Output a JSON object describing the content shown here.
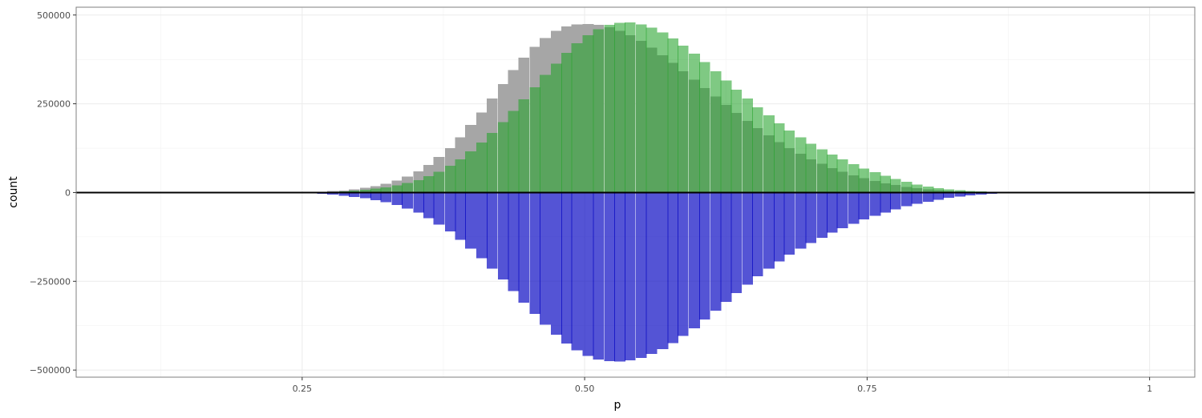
{
  "chart_data": {
    "type": "bar",
    "subtype": "mirrored-histogram",
    "xlabel": "p",
    "ylabel": "count",
    "xlim": [
      0.05,
      1.04
    ],
    "ylim": [
      -520000,
      522000
    ],
    "bin_width": 0.0094,
    "x_ticks": [
      0.25,
      0.5,
      0.75,
      1.0
    ],
    "x_tick_labels": [
      "0.25",
      "0.50",
      "0.75",
      "1"
    ],
    "y_ticks": [
      500000,
      250000,
      0,
      -250000,
      -500000
    ],
    "y_tick_labels": [
      "500000",
      "250000",
      "0",
      "−250000",
      "−500000"
    ],
    "grid": true,
    "zero_line": true,
    "x": [
      0.23,
      0.24,
      0.249,
      0.259,
      0.268,
      0.277,
      0.287,
      0.296,
      0.306,
      0.315,
      0.324,
      0.334,
      0.343,
      0.353,
      0.362,
      0.371,
      0.381,
      0.39,
      0.399,
      0.409,
      0.418,
      0.428,
      0.437,
      0.446,
      0.456,
      0.465,
      0.475,
      0.484,
      0.493,
      0.503,
      0.512,
      0.522,
      0.531,
      0.54,
      0.55,
      0.559,
      0.569,
      0.578,
      0.587,
      0.597,
      0.606,
      0.616,
      0.625,
      0.634,
      0.644,
      0.653,
      0.663,
      0.672,
      0.681,
      0.691,
      0.7,
      0.71,
      0.719,
      0.728,
      0.738,
      0.747,
      0.757,
      0.766,
      0.775,
      0.785,
      0.794,
      0.804,
      0.813,
      0.822,
      0.832,
      0.841,
      0.851,
      0.86,
      0.869,
      0.879,
      0.888,
      0.898,
      0.907,
      0.916,
      0.926,
      0.935,
      0.945,
      0.954,
      0.963,
      0.973
    ],
    "series": [
      {
        "color": "#a6a6a6",
        "opacity": 1.0,
        "values": [
          200,
          400,
          800,
          1500,
          2500,
          4000,
          6000,
          9000,
          13000,
          18000,
          25000,
          34000,
          45000,
          60000,
          78000,
          100000,
          125000,
          155000,
          190000,
          225000,
          265000,
          305000,
          345000,
          380000,
          410000,
          435000,
          455000,
          468000,
          474000,
          475000,
          472000,
          466000,
          456000,
          443000,
          427000,
          408000,
          387000,
          365000,
          342000,
          318000,
          294000,
          270000,
          247000,
          224000,
          202000,
          181000,
          161000,
          142000,
          125000,
          109000,
          94000,
          81000,
          69000,
          58000,
          48000,
          40000,
          33000,
          26000,
          21000,
          16000,
          12000,
          9000,
          6500,
          4500,
          3000,
          2000,
          1300,
          800,
          500,
          300,
          200,
          100,
          50,
          30,
          10,
          0,
          0,
          0,
          0,
          0
        ]
      },
      {
        "color": "#22a22a",
        "opacity": 0.58,
        "values": [
          100,
          200,
          500,
          900,
          1500,
          2500,
          3800,
          5500,
          8000,
          11000,
          15000,
          20000,
          27000,
          35000,
          46000,
          59000,
          75000,
          94000,
          116000,
          141000,
          168000,
          198000,
          230000,
          263000,
          297000,
          331000,
          363000,
          393000,
          420000,
          443000,
          460000,
          472000,
          478000,
          479000,
          474000,
          465000,
          451000,
          434000,
          414000,
          391000,
          367000,
          342000,
          316000,
          290000,
          265000,
          240000,
          217000,
          195000,
          175000,
          156000,
          138000,
          122000,
          107000,
          93000,
          80000,
          68000,
          57000,
          47000,
          38000,
          30000,
          23000,
          17000,
          12500,
          9000,
          6500,
          4500,
          3000,
          2000,
          1200,
          700,
          400,
          200,
          100,
          50,
          20,
          10,
          0,
          0,
          0,
          0
        ]
      },
      {
        "color": "#0000c0",
        "opacity": 0.67,
        "values": [
          -300,
          -700,
          -1500,
          -2500,
          -4000,
          -6000,
          -9000,
          -12000,
          -16000,
          -21000,
          -27000,
          -35000,
          -45000,
          -57000,
          -72000,
          -90000,
          -110000,
          -133000,
          -158000,
          -185000,
          -214000,
          -245000,
          -277000,
          -310000,
          -342000,
          -372000,
          -400000,
          -425000,
          -445000,
          -460000,
          -470000,
          -475000,
          -476000,
          -473000,
          -466000,
          -455000,
          -441000,
          -424000,
          -404000,
          -382000,
          -358000,
          -333000,
          -308000,
          -283000,
          -259000,
          -236000,
          -214000,
          -194000,
          -175000,
          -158000,
          -142000,
          -127000,
          -113000,
          -100000,
          -88000,
          -76000,
          -66000,
          -56000,
          -47000,
          -39000,
          -32000,
          -26000,
          -20000,
          -15000,
          -11000,
          -8000,
          -5500,
          -3500,
          -2200,
          -1300,
          -700,
          -400,
          -200,
          -100,
          -50,
          -20,
          0,
          0,
          0,
          0
        ]
      }
    ]
  }
}
